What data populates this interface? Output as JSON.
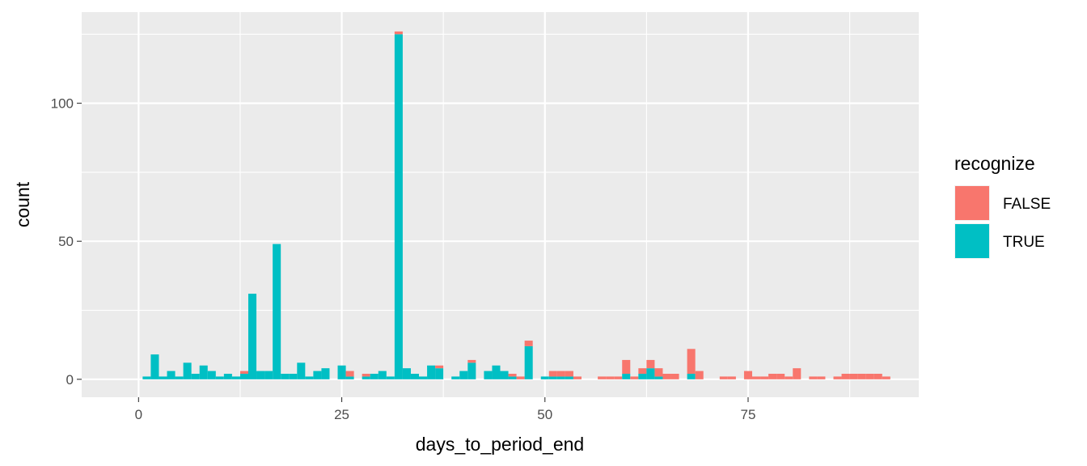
{
  "chart_data": {
    "type": "bar",
    "subtype": "stacked-histogram",
    "xlabel": "days_to_period_end",
    "ylabel": "count",
    "xlim": [
      -7,
      96
    ],
    "ylim": [
      -6.5,
      133
    ],
    "x_ticks": [
      0,
      25,
      50,
      75
    ],
    "y_ticks": [
      0,
      50,
      100
    ],
    "x_tick_labels": [
      "0",
      "25",
      "50",
      "75"
    ],
    "y_tick_labels": [
      "0",
      "50",
      "100"
    ],
    "grid": true,
    "legend": {
      "title": "recognize",
      "position": "right"
    },
    "series": [
      {
        "name": "FALSE",
        "color": "#F8766D",
        "points": [
          [
            13,
            1
          ],
          [
            26,
            2
          ],
          [
            28,
            1
          ],
          [
            32,
            1
          ],
          [
            37,
            1
          ],
          [
            41,
            1
          ],
          [
            46,
            1
          ],
          [
            47,
            1
          ],
          [
            48,
            2
          ],
          [
            51,
            2
          ],
          [
            52,
            2
          ],
          [
            53,
            2
          ],
          [
            54,
            1
          ],
          [
            57,
            1
          ],
          [
            58,
            1
          ],
          [
            59,
            1
          ],
          [
            60,
            5
          ],
          [
            61,
            1
          ],
          [
            62,
            2
          ],
          [
            63,
            3
          ],
          [
            64,
            3
          ],
          [
            65,
            2
          ],
          [
            66,
            2
          ],
          [
            68,
            9
          ],
          [
            69,
            3
          ],
          [
            72,
            1
          ],
          [
            73,
            1
          ],
          [
            75,
            3
          ],
          [
            76,
            1
          ],
          [
            77,
            1
          ],
          [
            78,
            2
          ],
          [
            79,
            2
          ],
          [
            80,
            1
          ],
          [
            81,
            4
          ],
          [
            83,
            1
          ],
          [
            84,
            1
          ],
          [
            86,
            1
          ],
          [
            87,
            2
          ],
          [
            88,
            2
          ],
          [
            89,
            2
          ],
          [
            90,
            2
          ],
          [
            91,
            2
          ],
          [
            92,
            1
          ]
        ]
      },
      {
        "name": "TRUE",
        "color": "#00BFC4",
        "points": [
          [
            1,
            1
          ],
          [
            2,
            9
          ],
          [
            3,
            1
          ],
          [
            4,
            3
          ],
          [
            5,
            1
          ],
          [
            6,
            6
          ],
          [
            7,
            2
          ],
          [
            8,
            5
          ],
          [
            9,
            3
          ],
          [
            10,
            1
          ],
          [
            11,
            2
          ],
          [
            12,
            1
          ],
          [
            13,
            2
          ],
          [
            14,
            31
          ],
          [
            15,
            3
          ],
          [
            16,
            3
          ],
          [
            17,
            49
          ],
          [
            18,
            2
          ],
          [
            19,
            2
          ],
          [
            20,
            6
          ],
          [
            21,
            1
          ],
          [
            22,
            3
          ],
          [
            23,
            4
          ],
          [
            25,
            5
          ],
          [
            26,
            1
          ],
          [
            28,
            1
          ],
          [
            29,
            2
          ],
          [
            30,
            3
          ],
          [
            31,
            1
          ],
          [
            32,
            125
          ],
          [
            33,
            4
          ],
          [
            34,
            2
          ],
          [
            35,
            1
          ],
          [
            36,
            5
          ],
          [
            37,
            4
          ],
          [
            39,
            1
          ],
          [
            40,
            3
          ],
          [
            41,
            6
          ],
          [
            43,
            3
          ],
          [
            44,
            5
          ],
          [
            45,
            3
          ],
          [
            46,
            1
          ],
          [
            48,
            12
          ],
          [
            50,
            1
          ],
          [
            51,
            1
          ],
          [
            52,
            1
          ],
          [
            53,
            1
          ],
          [
            60,
            2
          ],
          [
            62,
            2
          ],
          [
            63,
            4
          ],
          [
            64,
            1
          ],
          [
            68,
            2
          ]
        ]
      }
    ]
  }
}
